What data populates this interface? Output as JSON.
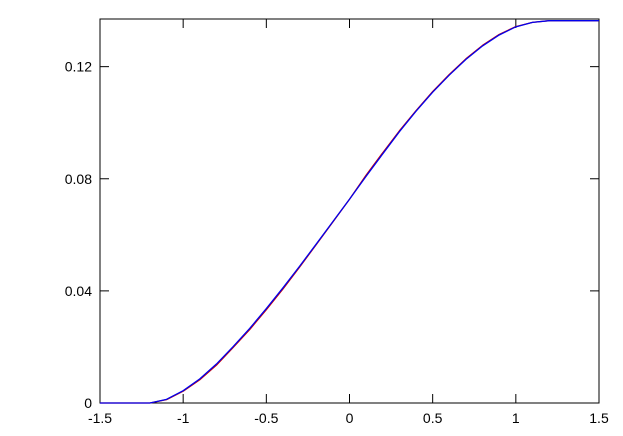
{
  "chart_data": {
    "type": "line",
    "title": "",
    "xlabel": "",
    "ylabel": "",
    "xlim": [
      -1.5,
      1.5
    ],
    "ylim": [
      0,
      0.137
    ],
    "x_ticks": [
      -1.5,
      -1,
      -0.5,
      0,
      0.5,
      1,
      1.5
    ],
    "x_tick_labels": [
      "-1.5",
      "-1",
      "-0.5",
      "0",
      "0.5",
      "1",
      "1.5"
    ],
    "y_ticks": [
      0,
      0.04,
      0.08,
      0.12
    ],
    "y_tick_labels": [
      "0",
      "0.04",
      "0.08",
      "0.12"
    ],
    "grid": false,
    "legend": "none",
    "series": [
      {
        "color": "#cc0000",
        "x": [
          -1.5,
          -1.3,
          -1.2,
          -1.1,
          -1.0,
          -0.9,
          -0.8,
          -0.7,
          -0.6,
          -0.5,
          -0.4,
          -0.3,
          -0.2,
          -0.1,
          0.0,
          0.1,
          0.2,
          0.3,
          0.4,
          0.5,
          0.6,
          0.7,
          0.8,
          0.9,
          1.0,
          1.1,
          1.2,
          1.23,
          1.3,
          1.4,
          1.5
        ],
        "y": [
          0,
          0,
          0,
          0.0012,
          0.0042,
          0.0083,
          0.0135,
          0.0198,
          0.0262,
          0.0333,
          0.0407,
          0.0485,
          0.0565,
          0.0646,
          0.0727,
          0.0813,
          0.0893,
          0.0971,
          0.1043,
          0.1111,
          0.1172,
          0.1228,
          0.1276,
          0.1315,
          0.1343,
          0.1358,
          0.1364,
          0.1364,
          0.1364,
          0.1364,
          0.1364
        ]
      },
      {
        "color": "#0000ee",
        "x": [
          -1.5,
          -1.3,
          -1.2,
          -1.1,
          -1.0,
          -0.9,
          -0.8,
          -0.7,
          -0.6,
          -0.5,
          -0.4,
          -0.3,
          -0.2,
          -0.1,
          0.0,
          0.1,
          0.2,
          0.3,
          0.4,
          0.5,
          0.6,
          0.7,
          0.8,
          0.9,
          1.0,
          1.1,
          1.2,
          1.23,
          1.3,
          1.4,
          1.5
        ],
        "y": [
          0,
          0,
          0,
          0.0013,
          0.0044,
          0.0086,
          0.0139,
          0.0201,
          0.0266,
          0.0337,
          0.0411,
          0.0488,
          0.0567,
          0.0647,
          0.0727,
          0.0809,
          0.0889,
          0.0968,
          0.1041,
          0.1109,
          0.117,
          0.1226,
          0.1274,
          0.1313,
          0.1342,
          0.1358,
          0.1364,
          0.1364,
          0.1364,
          0.1364,
          0.1364
        ]
      }
    ]
  }
}
